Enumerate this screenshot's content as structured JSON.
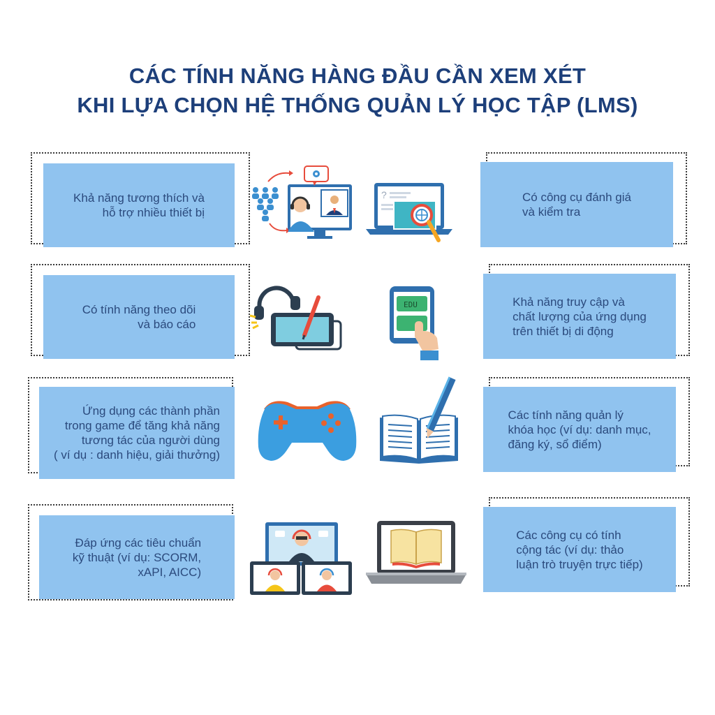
{
  "title": {
    "line1": "CÁC TÍNH NĂNG HÀNG ĐẦU CẦN XEM XÉT",
    "line2": "KHI LỰA CHỌN HỆ THỐNG QUẢN LÝ HỌC TẬP (LMS)"
  },
  "left_items": [
    {
      "lines": [
        "Khả năng tương thích và",
        "hỗ trợ nhiều thiết bị"
      ]
    },
    {
      "lines": [
        "Có tính năng theo dõi",
        "và báo cáo"
      ]
    },
    {
      "lines": [
        "Ứng dụng các thành phần",
        "trong game để tăng khả năng",
        "tương tác của người dùng",
        "( ví dụ : danh hiệu, giải thưởng)"
      ]
    },
    {
      "lines": [
        "Đáp ứng các tiêu chuẩn",
        "kỹ thuật (ví dụ: SCORM,",
        "xAPI, AICC)"
      ]
    }
  ],
  "right_items": [
    {
      "lines": [
        "Có công cụ đánh giá",
        "và kiểm tra"
      ]
    },
    {
      "lines": [
        "Khả năng truy cập và",
        "chất lượng của ứng dụng",
        "trên thiết bị di động"
      ]
    },
    {
      "lines": [
        "Các tính năng quản lý",
        "khóa học (ví dụ: danh mục,",
        "đăng ký, sổ điểm)"
      ]
    },
    {
      "lines": [
        "Các công cụ có tính",
        "cộng tác (ví dụ: thảo",
        "luận trò truyện trực tiếp)"
      ]
    }
  ],
  "tablet_label": "EDU",
  "icons": {
    "left": [
      "video-conference-icon",
      "drawing-tablet-icon",
      "gamepad-icon",
      "webinar-screens-icon"
    ],
    "right": [
      "laptop-search-icon",
      "mobile-edu-app-icon",
      "book-pencil-icon",
      "laptop-book-icon"
    ]
  },
  "colors": {
    "card": "#90c3ef",
    "text": "#2b4a7d",
    "title": "#1d3f7a"
  }
}
